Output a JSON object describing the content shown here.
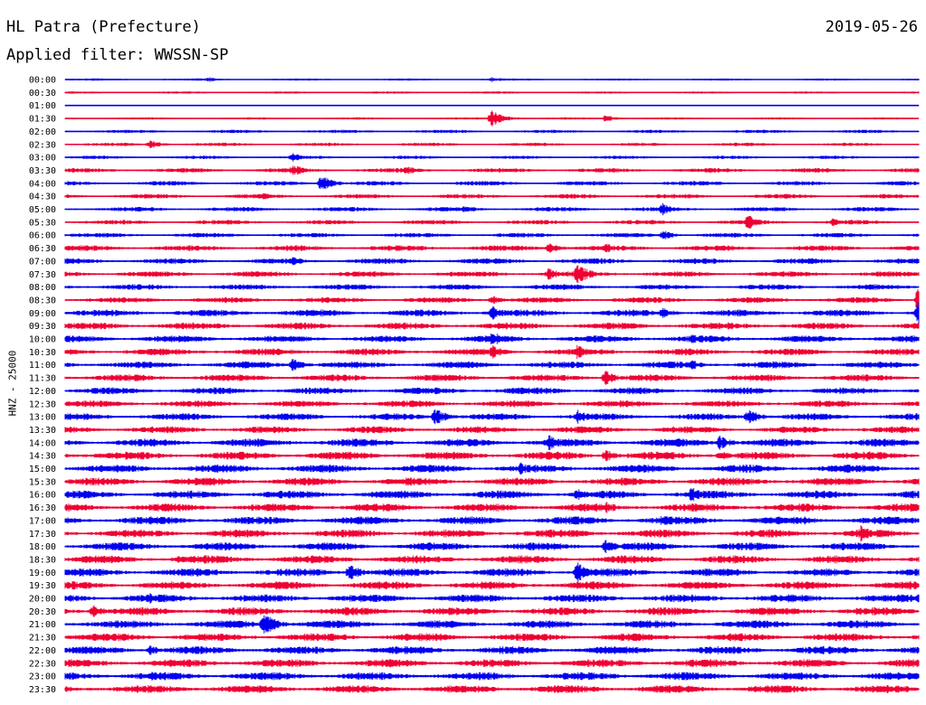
{
  "header": {
    "station": "HL Patra (Prefecture)",
    "date": "2019-05-26",
    "filter_text": "Applied filter: WWSSN-SP"
  },
  "chart_data": {
    "type": "line",
    "title": "HL Patra (Prefecture)",
    "ylabel": "HNZ - 25000",
    "xlabel": "",
    "grid": false,
    "legend": "none",
    "row_labels": [
      "00:00",
      "00:30",
      "01:00",
      "01:30",
      "02:00",
      "02:30",
      "03:00",
      "03:30",
      "04:00",
      "04:30",
      "05:00",
      "05:30",
      "06:00",
      "06:30",
      "07:00",
      "07:30",
      "08:00",
      "08:30",
      "09:00",
      "09:30",
      "10:00",
      "10:30",
      "11:00",
      "11:30",
      "12:00",
      "12:30",
      "13:00",
      "13:30",
      "14:00",
      "14:30",
      "15:00",
      "15:30",
      "16:00",
      "16:30",
      "17:00",
      "17:30",
      "18:00",
      "18:30",
      "19:00",
      "19:30",
      "20:00",
      "20:30",
      "21:00",
      "21:30",
      "22:00",
      "22:30",
      "23:00",
      "23:30"
    ],
    "colors": [
      "#0000ee",
      "#ee0033"
    ],
    "noise_levels": [
      1,
      1,
      0.5,
      1,
      1.5,
      1.5,
      1.5,
      2,
      2,
      2,
      2,
      2,
      2,
      2.5,
      2.5,
      2.5,
      2.5,
      2.5,
      3,
      3,
      3,
      3,
      3,
      3,
      3,
      3,
      3,
      3,
      3.5,
      3.5,
      3.5,
      3.5,
      3.5,
      3.5,
      3.5,
      3.5,
      3.5,
      3.5,
      3.5,
      3.5,
      3.5,
      3.5,
      3.5,
      3.5,
      3.5,
      3.5,
      3.5,
      3.5
    ],
    "events": [
      {
        "row": 0,
        "minute": 5,
        "amp": 3
      },
      {
        "row": 0,
        "minute": 15,
        "amp": 3
      },
      {
        "row": 3,
        "minute": 15,
        "amp": 9
      },
      {
        "row": 3,
        "minute": 19,
        "amp": 4
      },
      {
        "row": 5,
        "minute": 3,
        "amp": 5
      },
      {
        "row": 6,
        "minute": 8,
        "amp": 5
      },
      {
        "row": 7,
        "minute": 8,
        "amp": 7
      },
      {
        "row": 7,
        "minute": 12,
        "amp": 5
      },
      {
        "row": 8,
        "minute": 9,
        "amp": 9
      },
      {
        "row": 9,
        "minute": 7,
        "amp": 5
      },
      {
        "row": 10,
        "minute": 14,
        "amp": 5
      },
      {
        "row": 10,
        "minute": 21,
        "amp": 7
      },
      {
        "row": 11,
        "minute": 24,
        "amp": 9
      },
      {
        "row": 11,
        "minute": 27,
        "amp": 5
      },
      {
        "row": 12,
        "minute": 21,
        "amp": 6
      },
      {
        "row": 13,
        "minute": 17,
        "amp": 6
      },
      {
        "row": 13,
        "minute": 19,
        "amp": 6
      },
      {
        "row": 14,
        "minute": 8,
        "amp": 5
      },
      {
        "row": 15,
        "minute": 17,
        "amp": 7
      },
      {
        "row": 15,
        "minute": 18,
        "amp": 12
      },
      {
        "row": 17,
        "minute": 15,
        "amp": 5
      },
      {
        "row": 17,
        "minute": 30,
        "amp": 16
      },
      {
        "row": 18,
        "minute": 15,
        "amp": 8
      },
      {
        "row": 18,
        "minute": 21,
        "amp": 6
      },
      {
        "row": 18,
        "minute": 30,
        "amp": 16
      },
      {
        "row": 20,
        "minute": 15,
        "amp": 9
      },
      {
        "row": 20,
        "minute": 22,
        "amp": 6
      },
      {
        "row": 21,
        "minute": 15,
        "amp": 8
      },
      {
        "row": 21,
        "minute": 18,
        "amp": 9
      },
      {
        "row": 22,
        "minute": 8,
        "amp": 7
      },
      {
        "row": 22,
        "minute": 22,
        "amp": 6
      },
      {
        "row": 23,
        "minute": 19,
        "amp": 8
      },
      {
        "row": 26,
        "minute": 13,
        "amp": 10
      },
      {
        "row": 26,
        "minute": 18,
        "amp": 8
      },
      {
        "row": 26,
        "minute": 24,
        "amp": 9
      },
      {
        "row": 28,
        "minute": 17,
        "amp": 9
      },
      {
        "row": 28,
        "minute": 23,
        "amp": 8
      },
      {
        "row": 29,
        "minute": 19,
        "amp": 7
      },
      {
        "row": 29,
        "minute": 23,
        "amp": 6
      },
      {
        "row": 30,
        "minute": 16,
        "amp": 7
      },
      {
        "row": 32,
        "minute": 18,
        "amp": 7
      },
      {
        "row": 32,
        "minute": 22,
        "amp": 9
      },
      {
        "row": 33,
        "minute": 19,
        "amp": 7
      },
      {
        "row": 34,
        "minute": 21,
        "amp": 7
      },
      {
        "row": 34,
        "minute": 26,
        "amp": 6
      },
      {
        "row": 35,
        "minute": 28,
        "amp": 11
      },
      {
        "row": 36,
        "minute": 19,
        "amp": 8
      },
      {
        "row": 37,
        "minute": 4,
        "amp": 6
      },
      {
        "row": 38,
        "minute": 10,
        "amp": 10
      },
      {
        "row": 38,
        "minute": 18,
        "amp": 12
      },
      {
        "row": 40,
        "minute": 3,
        "amp": 6
      },
      {
        "row": 40,
        "minute": 30,
        "amp": 7
      },
      {
        "row": 41,
        "minute": 1,
        "amp": 7
      },
      {
        "row": 42,
        "minute": 7,
        "amp": 13
      },
      {
        "row": 43,
        "minute": 20,
        "amp": 5
      },
      {
        "row": 44,
        "minute": 3,
        "amp": 6
      },
      {
        "row": 46,
        "minute": 3,
        "amp": 6
      }
    ]
  }
}
